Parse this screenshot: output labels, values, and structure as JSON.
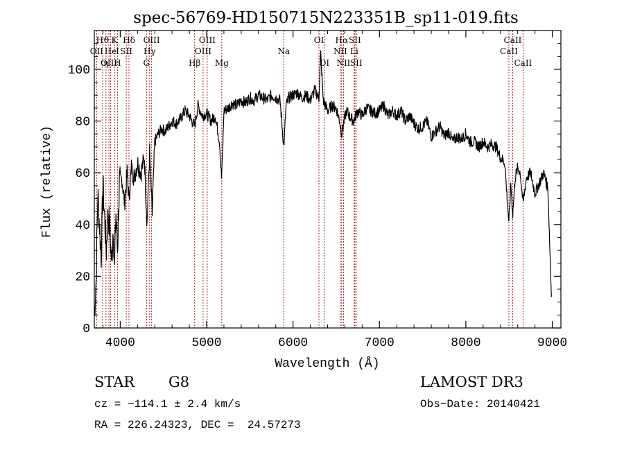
{
  "chart_data": {
    "type": "line",
    "title": "spec-56769-HD150715N223351B_sp11-019.fits",
    "xlabel": "Wavelength (Å)",
    "ylabel": "Flux (relative)",
    "xlim": [
      3700,
      9100
    ],
    "ylim": [
      0,
      115
    ],
    "xticks": [
      4000,
      5000,
      6000,
      7000,
      8000,
      9000
    ],
    "yticks": [
      0,
      20,
      40,
      60,
      80,
      100
    ],
    "grid": false,
    "series": [
      {
        "name": "flux",
        "x": [
          3700,
          3720,
          3740,
          3760,
          3780,
          3800,
          3820,
          3840,
          3860,
          3880,
          3900,
          3920,
          3933,
          3950,
          3968,
          3990,
          4020,
          4050,
          4080,
          4101,
          4130,
          4160,
          4200,
          4240,
          4280,
          4310,
          4340,
          4370,
          4400,
          4440,
          4480,
          4520,
          4560,
          4600,
          4650,
          4700,
          4750,
          4800,
          4830,
          4861,
          4900,
          4950,
          5000,
          5050,
          5100,
          5150,
          5172,
          5183,
          5200,
          5250,
          5300,
          5350,
          5400,
          5450,
          5500,
          5550,
          5600,
          5650,
          5700,
          5750,
          5800,
          5850,
          5893,
          5920,
          5950,
          6000,
          6050,
          6100,
          6150,
          6200,
          6250,
          6300,
          6320,
          6350,
          6400,
          6450,
          6500,
          6540,
          6563,
          6590,
          6620,
          6650,
          6700,
          6750,
          6800,
          6850,
          6900,
          6950,
          7000,
          7050,
          7100,
          7150,
          7200,
          7250,
          7300,
          7350,
          7400,
          7450,
          7500,
          7550,
          7600,
          7650,
          7700,
          7750,
          7800,
          7850,
          7900,
          7950,
          8000,
          8050,
          8100,
          8150,
          8200,
          8250,
          8300,
          8350,
          8400,
          8450,
          8498,
          8520,
          8542,
          8570,
          8600,
          8630,
          8662,
          8700,
          8750,
          8800,
          8850,
          8900,
          8950,
          8990
        ],
        "values": [
          5,
          18,
          52,
          40,
          28,
          55,
          42,
          30,
          45,
          38,
          25,
          40,
          22,
          45,
          30,
          55,
          58,
          48,
          60,
          50,
          62,
          58,
          64,
          60,
          66,
          40,
          68,
          44,
          72,
          75,
          77,
          76,
          78,
          80,
          79,
          81,
          84,
          82,
          80,
          78,
          86,
          82,
          83,
          80,
          82,
          72,
          58,
          66,
          84,
          85,
          87,
          86,
          88,
          87,
          89,
          88,
          90,
          89,
          88,
          90,
          89,
          88,
          70,
          86,
          89,
          90,
          91,
          89,
          90,
          88,
          92,
          89,
          106,
          88,
          84,
          86,
          85,
          80,
          75,
          80,
          84,
          82,
          80,
          84,
          82,
          85,
          84,
          83,
          84,
          86,
          82,
          84,
          82,
          84,
          80,
          82,
          79,
          77,
          78,
          80,
          74,
          76,
          78,
          74,
          76,
          72,
          74,
          73,
          75,
          72,
          72,
          70,
          72,
          70,
          71,
          70,
          66,
          64,
          40,
          56,
          44,
          58,
          62,
          60,
          48,
          58,
          60,
          52,
          56,
          60,
          54,
          12
        ]
      }
    ],
    "line_labels": [
      {
        "text": "Hϑ",
        "wl": 3797,
        "row": 1
      },
      {
        "text": "OII",
        "wl": 3727,
        "row": 2
      },
      {
        "text": "OIII",
        "wl": 3869,
        "row": 3
      },
      {
        "text": "He",
        "wl": 3889,
        "row": 2
      },
      {
        "text": "K",
        "wl": 3933,
        "row": 1
      },
      {
        "text": "η",
        "wl": 3835,
        "row": 3
      },
      {
        "text": "I",
        "wl": 3970,
        "row": 2
      },
      {
        "text": "H",
        "wl": 3968,
        "row": 3
      },
      {
        "text": "SII",
        "wl": 4070,
        "row": 2
      },
      {
        "text": "Hδ",
        "wl": 4101,
        "row": 1
      },
      {
        "text": "OIII",
        "wl": 4363,
        "row": 1
      },
      {
        "text": "Hγ",
        "wl": 4340,
        "row": 2
      },
      {
        "text": "G",
        "wl": 4304,
        "row": 3
      },
      {
        "text": "OIII",
        "wl": 5007,
        "row": 1
      },
      {
        "text": "OIII",
        "wl": 4959,
        "row": 2
      },
      {
        "text": "Hβ",
        "wl": 4861,
        "row": 3
      },
      {
        "text": "Mg",
        "wl": 5175,
        "row": 3
      },
      {
        "text": "Na",
        "wl": 5893,
        "row": 2
      },
      {
        "text": "OI",
        "wl": 6300,
        "row": 1
      },
      {
        "text": "OI",
        "wl": 6363,
        "row": 3
      },
      {
        "text": "Hα",
        "wl": 6563,
        "row": 1
      },
      {
        "text": "SII",
        "wl": 6716,
        "row": 1
      },
      {
        "text": "NII",
        "wl": 6548,
        "row": 2
      },
      {
        "text": "Li",
        "wl": 6708,
        "row": 2
      },
      {
        "text": "NII",
        "wl": 6584,
        "row": 3
      },
      {
        "text": "SII",
        "wl": 6731,
        "row": 3
      },
      {
        "text": "CaII",
        "wl": 8542,
        "row": 1
      },
      {
        "text": "CaII",
        "wl": 8498,
        "row": 2
      },
      {
        "text": "CaII",
        "wl": 8662,
        "row": 3
      }
    ],
    "line_markers": [
      3727,
      3797,
      3835,
      3869,
      3889,
      3933,
      3968,
      4070,
      4101,
      4304,
      4340,
      4363,
      4861,
      4959,
      5007,
      5175,
      5893,
      6300,
      6363,
      6548,
      6563,
      6584,
      6708,
      6716,
      6731,
      8498,
      8542,
      8662
    ]
  },
  "info": {
    "object_type": "STAR",
    "subclass": "G8",
    "survey": "LAMOST DR3",
    "cz": "cz = −114.1 ± 2.4 km/s",
    "obs_date": "Obs−Date: 20140421",
    "coords": "RA = 226.24323, DEC =  24.57273"
  },
  "colors": {
    "axis": "#000000",
    "spectrum": "#000000",
    "marker": "#b22222"
  }
}
